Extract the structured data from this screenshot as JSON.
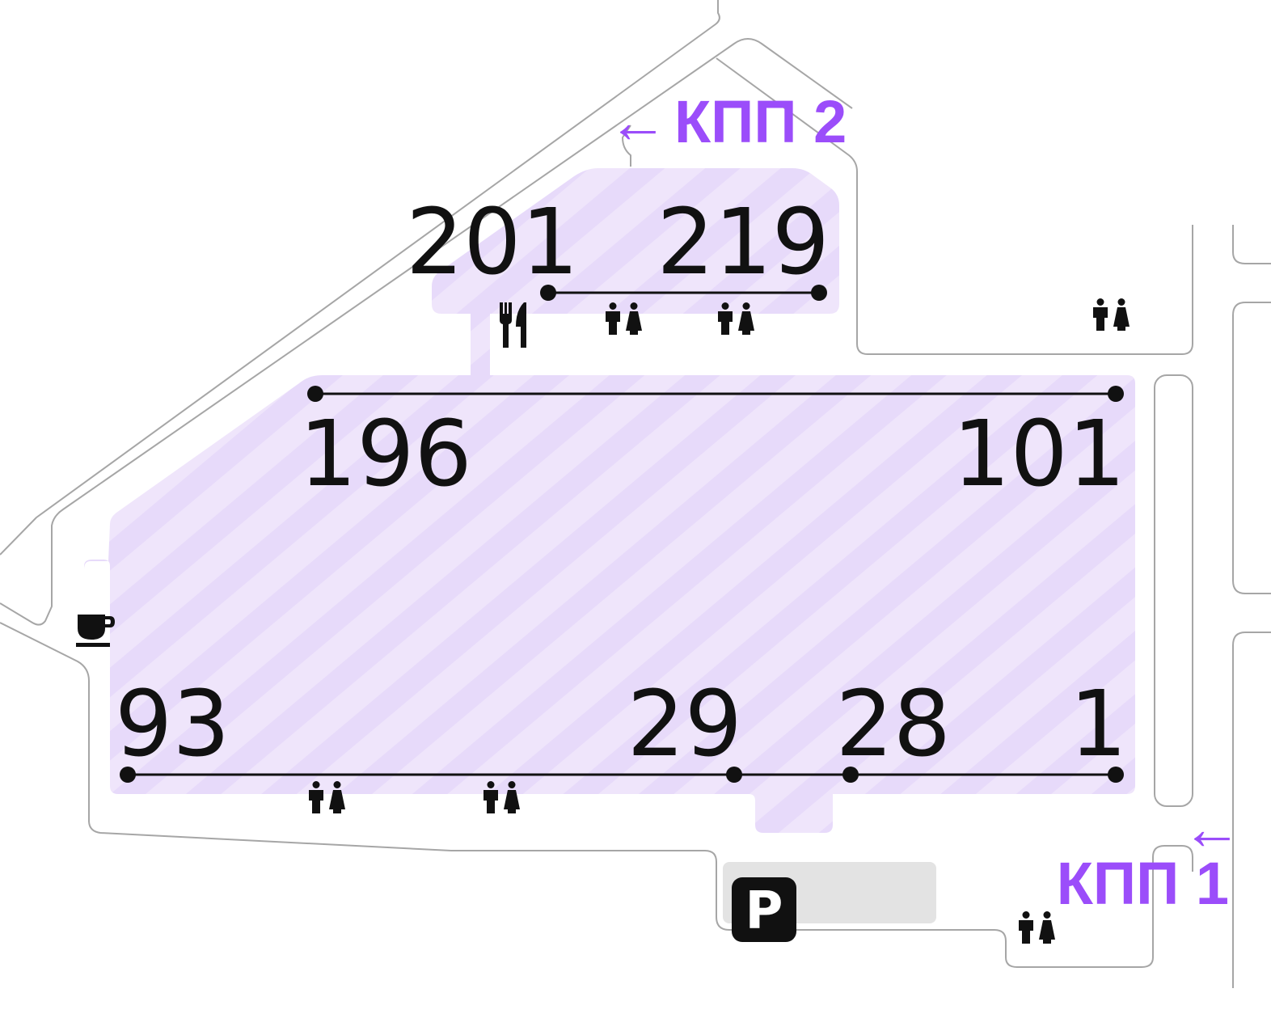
{
  "colors": {
    "zone_fill": "#efe5fb",
    "zone_stripe": "#e7dafa",
    "accent": "#9b4dfa",
    "road_outline": "#a6a6a6",
    "parking_area": "#e3e3e3",
    "ink": "#111111"
  },
  "rows": {
    "upper": {
      "start": "201",
      "end": "219"
    },
    "middle": {
      "start": "196",
      "end": "101"
    },
    "lower": {
      "start": "93",
      "end": "1",
      "mid_a": "29",
      "mid_b": "28"
    }
  },
  "gates": {
    "gate_2": {
      "arrow": "←",
      "label": "КПП 2"
    },
    "gate_1": {
      "arrow": "←",
      "label": "КПП 1"
    }
  },
  "facilities": {
    "parking": {
      "icon": "parking-icon",
      "letter": "P"
    },
    "cafe": {
      "icon": "coffee-cup-icon"
    },
    "restaurant": {
      "icon": "fork-knife-icon"
    },
    "toilet": {
      "icon": "toilet-man-woman-icon",
      "count": 6
    }
  }
}
